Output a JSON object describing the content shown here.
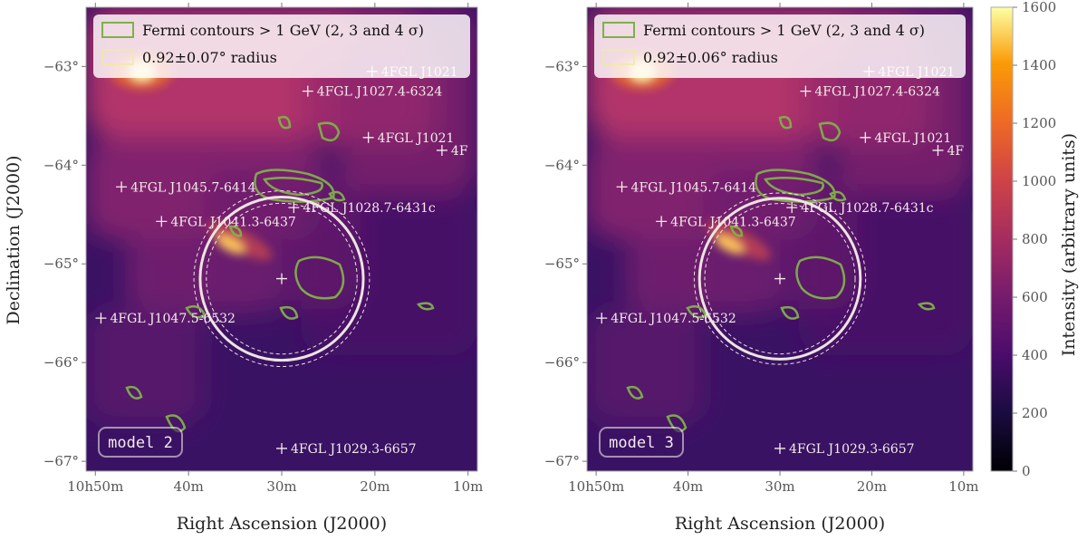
{
  "panels": [
    {
      "model_label": "model 2",
      "legend": {
        "contours": "Fermi contours > 1 GeV (2, 3 and 4 σ)",
        "radius": "0.92±0.07° radius"
      }
    },
    {
      "model_label": "model 3",
      "legend": {
        "contours": "Fermi contours > 1 GeV (2, 3 and 4 σ)",
        "radius": "0.92±0.06° radius"
      }
    }
  ],
  "axes": {
    "xlabel": "Right Ascension (J2000)",
    "ylabel": "Declination (J2000)",
    "x_ticks": [
      "10h50m",
      "40m",
      "30m",
      "20m",
      "10m"
    ],
    "y_ticks": [
      "−63°",
      "−64°",
      "−65°",
      "−66°",
      "−67°"
    ]
  },
  "sources": [
    {
      "name": "4FGL J1021",
      "ra_min": 20.3,
      "dec": -63.05
    },
    {
      "name": "4FGL J1027.4-6324",
      "ra_min": 27.2,
      "dec": -63.25
    },
    {
      "name": "4FGL J1021",
      "ra_min": 20.7,
      "dec": -63.72
    },
    {
      "name": "4F",
      "ra_min": 12.8,
      "dec": -63.85
    },
    {
      "name": "4FGL J1045.7-6414",
      "ra_min": 47.2,
      "dec": -64.22
    },
    {
      "name": "4FGL J1028.7-6431c",
      "ra_min": 28.7,
      "dec": -64.43
    },
    {
      "name": "4FGL J1041.3-6437",
      "ra_min": 42.9,
      "dec": -64.57
    },
    {
      "name": "",
      "ra_min": 30.0,
      "dec": -65.15
    },
    {
      "name": "4FGL J1047.5-6532",
      "ra_min": 49.4,
      "dec": -65.55
    },
    {
      "name": "4FGL J1029.3-6657",
      "ra_min": 30.0,
      "dec": -66.87
    }
  ],
  "colorbar": {
    "label": "Intensity (arbitrary units)",
    "ticks": [
      "0",
      "200",
      "400",
      "600",
      "800",
      "1000",
      "1200",
      "1400",
      "1600"
    ]
  },
  "chart_data": [
    {
      "type": "heatmap",
      "title": "model 2",
      "xlabel": "Right Ascension (J2000)",
      "ylabel": "Declination (J2000)",
      "xlim_ra_min": [
        51,
        9
      ],
      "ylim_dec_deg": [
        -67.1,
        -62.4
      ],
      "circle": {
        "center_ra_min": 30.0,
        "center_dec": -65.15,
        "radius_deg": 0.92,
        "error_deg": 0.07
      },
      "hotspots": [
        {
          "ra_min": 45.0,
          "dec": -63.05,
          "intensity": 1600
        },
        {
          "ra_min": 35.5,
          "dec": -64.8,
          "intensity": 1400
        }
      ],
      "colorbar_range": [
        0,
        1600
      ],
      "legend_position": "top-left"
    },
    {
      "type": "heatmap",
      "title": "model 3",
      "xlabel": "Right Ascension (J2000)",
      "ylabel": "Declination (J2000)",
      "xlim_ra_min": [
        51,
        9
      ],
      "ylim_dec_deg": [
        -67.1,
        -62.4
      ],
      "circle": {
        "center_ra_min": 30.0,
        "center_dec": -65.15,
        "radius_deg": 0.92,
        "error_deg": 0.06
      },
      "hotspots": [
        {
          "ra_min": 45.0,
          "dec": -63.05,
          "intensity": 1600
        },
        {
          "ra_min": 35.5,
          "dec": -64.8,
          "intensity": 1400
        }
      ],
      "colorbar_range": [
        0,
        1600
      ],
      "legend_position": "top-left"
    }
  ]
}
